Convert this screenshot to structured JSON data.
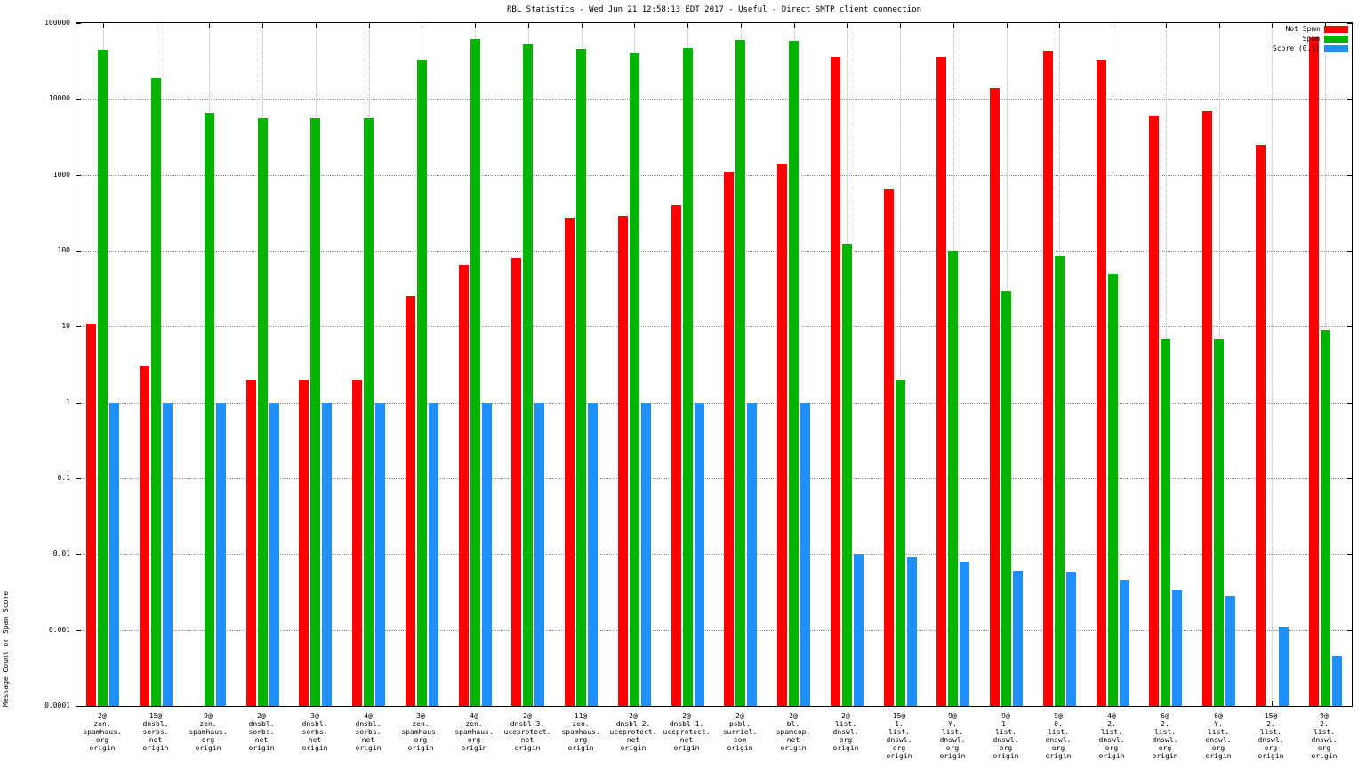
{
  "title": "RBL Statistics - Wed Jun 21 12:58:13 EDT 2017 - Useful - Direct SMTP client connection",
  "ylabel": "Message Count or Spam Score",
  "legend": [
    {
      "label": "Not Spam",
      "color": "#ff0000"
    },
    {
      "label": "Spam",
      "color": "#00b400"
    },
    {
      "label": "Score (0.1)",
      "color": "#1e90ff"
    }
  ],
  "chart_data": {
    "type": "bar",
    "yscale": "log",
    "ylim": [
      0.0001,
      100000
    ],
    "grid": true,
    "legend_position": "top-right",
    "xlabel": "",
    "ytick_labels": [
      "100000",
      "10000",
      "1000",
      "100",
      "10",
      "1",
      "0.1",
      "0.01",
      "0.001",
      "0.0001"
    ],
    "categories": [
      [
        "2@",
        "zen.",
        "spamhaus.",
        "org",
        "origin"
      ],
      [
        "15@",
        "dnsbl.",
        "sorbs.",
        "net",
        "origin"
      ],
      [
        "9@",
        "zen.",
        "spamhaus.",
        "org",
        "origin"
      ],
      [
        "2@",
        "dnsbl.",
        "sorbs.",
        "net",
        "origin"
      ],
      [
        "3@",
        "dnsbl.",
        "sorbs.",
        "net",
        "origin"
      ],
      [
        "4@",
        "dnsbl.",
        "sorbs.",
        "net",
        "origin"
      ],
      [
        "3@",
        "zen.",
        "spamhaus.",
        "org",
        "origin"
      ],
      [
        "4@",
        "zen.",
        "spamhaus.",
        "org",
        "origin"
      ],
      [
        "2@",
        "dnsbl-3.",
        "uceprotect.",
        "net",
        "origin"
      ],
      [
        "11@",
        "zen.",
        "spamhaus.",
        "org",
        "origin"
      ],
      [
        "2@",
        "dnsbl-2.",
        "uceprotect.",
        "net",
        "origin"
      ],
      [
        "2@",
        "dnsbl-1.",
        "uceprotect.",
        "net",
        "origin"
      ],
      [
        "2@",
        "psbl.",
        "surriel.",
        "com",
        "origin"
      ],
      [
        "2@",
        "bl.",
        "spamcop.",
        "net",
        "origin"
      ],
      [
        "2@",
        "list.",
        "dnswl.",
        "org",
        "origin"
      ],
      [
        "15@",
        "1.",
        "list.",
        "dnswl.",
        "org",
        "origin"
      ],
      [
        "9@",
        "Y.",
        "list.",
        "dnswl.",
        "org",
        "origin"
      ],
      [
        "9@",
        "1.",
        "list.",
        "dnswl.",
        "org",
        "origin"
      ],
      [
        "9@",
        "0.",
        "list.",
        "dnswl.",
        "org",
        "origin"
      ],
      [
        "4@",
        "2.",
        "list.",
        "dnswl.",
        "org",
        "origin"
      ],
      [
        "6@",
        "2.",
        "list.",
        "dnswl.",
        "org",
        "origin"
      ],
      [
        "6@",
        "Y.",
        "list.",
        "dnswl.",
        "org",
        "origin"
      ],
      [
        "15@",
        "2.",
        "list.",
        "dnswl.",
        "org",
        "origin"
      ],
      [
        "9@",
        "2.",
        "list.",
        "dnswl.",
        "org",
        "origin"
      ]
    ],
    "series": [
      {
        "name": "Not Spam",
        "color": "#ff0000",
        "values": [
          11,
          3,
          null,
          2,
          2,
          2,
          25,
          65,
          80,
          270,
          290,
          400,
          1100,
          1400,
          36000,
          650,
          36000,
          14000,
          43000,
          32000,
          6000,
          7000,
          2500,
          65000
        ]
      },
      {
        "name": "Spam",
        "color": "#00b400",
        "values": [
          45000,
          19000,
          6500,
          5500,
          5500,
          5500,
          33000,
          62000,
          52000,
          46000,
          40000,
          47000,
          60000,
          58000,
          120,
          2,
          100,
          30,
          85,
          50,
          7,
          7,
          null,
          9
        ]
      },
      {
        "name": "Score (0.1)",
        "color": "#1e90ff",
        "values": [
          1,
          1,
          1,
          1,
          1,
          1,
          1,
          1,
          1,
          1,
          1,
          1,
          1,
          1,
          0.01,
          0.009,
          0.008,
          0.006,
          0.0058,
          0.0045,
          0.0033,
          0.0028,
          0.0011,
          0.00045
        ]
      }
    ]
  }
}
